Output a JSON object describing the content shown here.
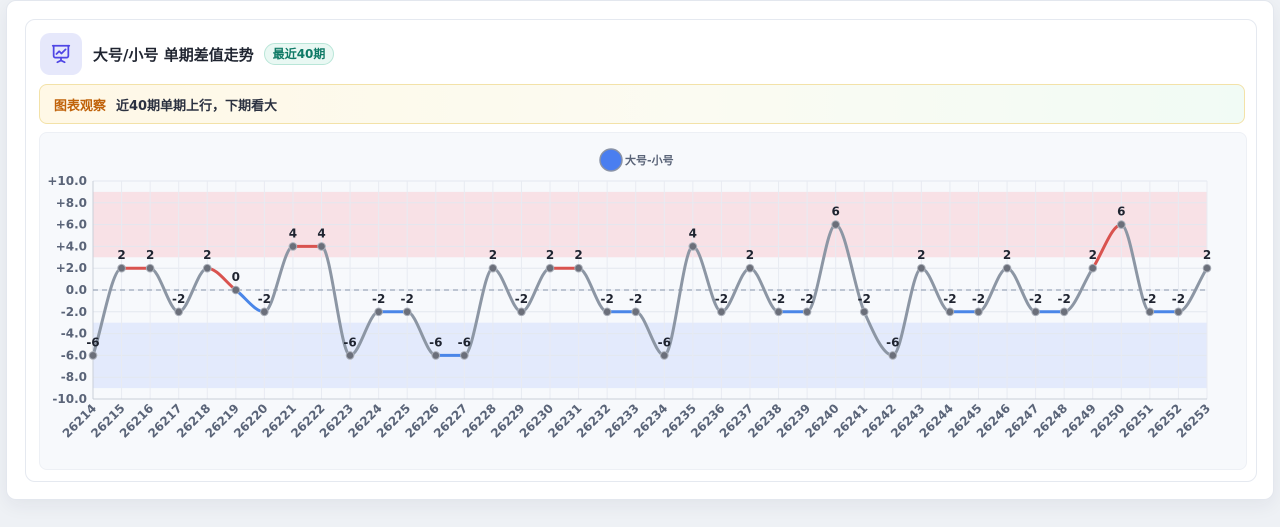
{
  "header": {
    "title": "大号/小号 单期差值走势",
    "badge": "最近40期",
    "icon": "presentation-chart-icon"
  },
  "note": {
    "label": "图表观察",
    "text": "近40期单期上行，下期看大"
  },
  "colors": {
    "up": "#d9534f",
    "down": "#4a86e8",
    "flat": "#8c96a4",
    "legend": "#4a7ef0",
    "upper_band": "#f8dde2",
    "lower_band": "#dfe7fb"
  },
  "chart_data": {
    "type": "line",
    "legend": {
      "position": "top-center",
      "entries": [
        "大号-小号"
      ]
    },
    "series": [
      {
        "name": "大号-小号",
        "values": [
          -6,
          2,
          2,
          -2,
          2,
          0,
          -2,
          4,
          4,
          -6,
          -2,
          -2,
          -6,
          -6,
          2,
          -2,
          2,
          2,
          -2,
          -2,
          -6,
          4,
          -2,
          2,
          -2,
          -2,
          6,
          -2,
          -6,
          2,
          -2,
          -2,
          2,
          -2,
          -2,
          2,
          6,
          -2,
          -2,
          2
        ],
        "labels": [
          "-6",
          "2",
          "2",
          "-2",
          "2",
          "0",
          "-2",
          "4",
          "4",
          "-6",
          "-2",
          "-2",
          "-6",
          "-6",
          "2",
          "-2",
          "2",
          "2",
          "-2",
          "-2",
          "-6",
          "4",
          "-2",
          "2",
          "-2",
          "-2",
          "6",
          "-2",
          "-6",
          "2",
          "-2",
          "-2",
          "2",
          "-2",
          "-2",
          "2",
          "6",
          "-2",
          "-2",
          "2"
        ]
      }
    ],
    "categories": [
      "26214",
      "26215",
      "26216",
      "26217",
      "26218",
      "26219",
      "26220",
      "26221",
      "26222",
      "26223",
      "26224",
      "26225",
      "26226",
      "26227",
      "26228",
      "26229",
      "26230",
      "26231",
      "26232",
      "26233",
      "26234",
      "26235",
      "26236",
      "26237",
      "26238",
      "26239",
      "26240",
      "26241",
      "26242",
      "26243",
      "26244",
      "26245",
      "26246",
      "26247",
      "26248",
      "26249",
      "26250",
      "26251",
      "26252",
      "26253"
    ],
    "y_ticks": [
      10,
      8,
      6,
      4,
      2,
      0,
      -2,
      -4,
      -6,
      -8,
      -10
    ],
    "y_tick_labels": [
      "+10.0",
      "+8.0",
      "+6.0",
      "+4.0",
      "+2.0",
      "0.0",
      "-2.0",
      "-4.0",
      "-6.0",
      "-8.0",
      "-10.0"
    ],
    "ylim": [
      -10,
      10
    ],
    "bands": [
      {
        "from": 3,
        "to": 9,
        "kind": "upper"
      },
      {
        "from": -9,
        "to": -3,
        "kind": "lower"
      }
    ],
    "zero_line": true,
    "grid": true,
    "title": "",
    "xlabel": "",
    "ylabel": ""
  }
}
